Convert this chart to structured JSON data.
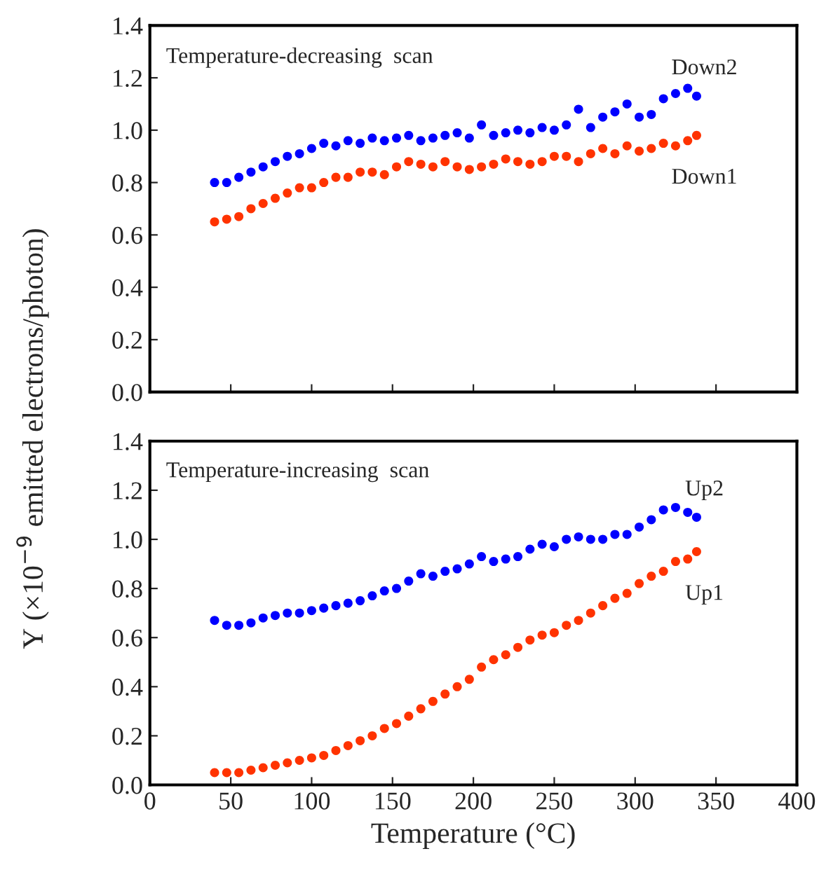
{
  "chart_data": [
    {
      "type": "scatter",
      "annotations": [
        "Temperature-decreasing  scan"
      ],
      "ylabel": "Y (×10$^{−9}$ emitted electrons/photon)",
      "xlim": [
        0,
        400
      ],
      "xticks": [
        0,
        50,
        100,
        150,
        200,
        250,
        300,
        350,
        400
      ],
      "ylim": [
        0,
        1.4
      ],
      "yticks": [
        "0.0",
        0.2,
        0.4,
        0.6,
        0.8,
        "1.0",
        1.2,
        1.4
      ],
      "tick_labels": "y",
      "marker": "circle",
      "grid": false,
      "legend": false,
      "series": [
        {
          "name": "Down2",
          "color": "#0000ff",
          "x": [
            40,
            47.5,
            55,
            62.5,
            70,
            77.5,
            85,
            92.5,
            100,
            107.5,
            115,
            122.5,
            130,
            137.5,
            145,
            152.5,
            160,
            167.5,
            175,
            182.5,
            190,
            197.5,
            205,
            212.5,
            220,
            227.5,
            235,
            242.5,
            250,
            257.5,
            265,
            272.5,
            280,
            287.5,
            295,
            302.5,
            310,
            317.5,
            325,
            332.5,
            338
          ],
          "values": [
            0.8,
            0.8,
            0.82,
            0.84,
            0.86,
            0.88,
            0.9,
            0.91,
            0.93,
            0.95,
            0.94,
            0.96,
            0.95,
            0.97,
            0.96,
            0.97,
            0.98,
            0.96,
            0.97,
            0.98,
            0.99,
            0.97,
            1.02,
            0.98,
            0.99,
            1.0,
            0.99,
            1.01,
            1.0,
            1.02,
            1.08,
            1.01,
            1.05,
            1.07,
            1.1,
            1.05,
            1.06,
            1.12,
            1.14,
            1.16,
            1.13
          ]
        },
        {
          "name": "Down1",
          "color": "#ff3300",
          "x": [
            40,
            47.5,
            55,
            62.5,
            70,
            77.5,
            85,
            92.5,
            100,
            107.5,
            115,
            122.5,
            130,
            137.5,
            145,
            152.5,
            160,
            167.5,
            175,
            182.5,
            190,
            197.5,
            205,
            212.5,
            220,
            227.5,
            235,
            242.5,
            250,
            257.5,
            265,
            272.5,
            280,
            287.5,
            295,
            302.5,
            310,
            317.5,
            325,
            332.5,
            338
          ],
          "values": [
            0.65,
            0.66,
            0.67,
            0.7,
            0.72,
            0.74,
            0.76,
            0.78,
            0.78,
            0.8,
            0.82,
            0.82,
            0.84,
            0.84,
            0.83,
            0.86,
            0.88,
            0.87,
            0.86,
            0.88,
            0.86,
            0.85,
            0.86,
            0.87,
            0.89,
            0.88,
            0.87,
            0.88,
            0.9,
            0.9,
            0.88,
            0.91,
            0.93,
            0.91,
            0.94,
            0.92,
            0.93,
            0.95,
            0.94,
            0.96,
            0.98
          ]
        }
      ]
    },
    {
      "type": "scatter",
      "annotations": [
        "Temperature-increasing  scan"
      ],
      "xlabel": "Temperature (°C)",
      "xlim": [
        0,
        400
      ],
      "xticks": [
        0,
        50,
        100,
        150,
        200,
        250,
        300,
        350,
        400
      ],
      "ylim": [
        0,
        1.4
      ],
      "yticks": [
        "0.0",
        0.2,
        0.4,
        0.6,
        0.8,
        "1.0",
        1.2,
        1.4
      ],
      "marker": "circle",
      "grid": false,
      "legend": false,
      "series": [
        {
          "name": "Up2",
          "color": "#0000ff",
          "x": [
            40,
            47.5,
            55,
            62.5,
            70,
            77.5,
            85,
            92.5,
            100,
            107.5,
            115,
            122.5,
            130,
            137.5,
            145,
            152.5,
            160,
            167.5,
            175,
            182.5,
            190,
            197.5,
            205,
            212.5,
            220,
            227.5,
            235,
            242.5,
            250,
            257.5,
            265,
            272.5,
            280,
            287.5,
            295,
            302.5,
            310,
            317.5,
            325,
            332.5,
            338
          ],
          "values": [
            0.67,
            0.65,
            0.65,
            0.66,
            0.68,
            0.69,
            0.7,
            0.7,
            0.71,
            0.72,
            0.73,
            0.74,
            0.75,
            0.77,
            0.79,
            0.8,
            0.83,
            0.86,
            0.85,
            0.87,
            0.88,
            0.9,
            0.93,
            0.91,
            0.92,
            0.93,
            0.96,
            0.98,
            0.97,
            1.0,
            1.01,
            1.0,
            1.0,
            1.02,
            1.02,
            1.05,
            1.08,
            1.12,
            1.13,
            1.11,
            1.09
          ]
        },
        {
          "name": "Up1",
          "color": "#ff3300",
          "x": [
            40,
            47.5,
            55,
            62.5,
            70,
            77.5,
            85,
            92.5,
            100,
            107.5,
            115,
            122.5,
            130,
            137.5,
            145,
            152.5,
            160,
            167.5,
            175,
            182.5,
            190,
            197.5,
            205,
            212.5,
            220,
            227.5,
            235,
            242.5,
            250,
            257.5,
            265,
            272.5,
            280,
            287.5,
            295,
            302.5,
            310,
            317.5,
            325,
            332.5,
            338
          ],
          "values": [
            0.05,
            0.05,
            0.05,
            0.06,
            0.07,
            0.08,
            0.09,
            0.1,
            0.11,
            0.12,
            0.14,
            0.16,
            0.18,
            0.2,
            0.23,
            0.25,
            0.28,
            0.31,
            0.34,
            0.37,
            0.4,
            0.43,
            0.48,
            0.51,
            0.53,
            0.56,
            0.59,
            0.61,
            0.62,
            0.65,
            0.67,
            0.7,
            0.73,
            0.76,
            0.78,
            0.82,
            0.85,
            0.87,
            0.91,
            0.92,
            0.95
          ]
        }
      ]
    }
  ]
}
